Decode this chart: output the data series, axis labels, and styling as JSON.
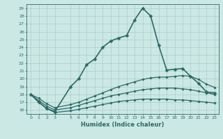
{
  "xlabel": "Humidex (Indice chaleur)",
  "background_color": "#cce8e4",
  "grid_color": "#aaccca",
  "line_color": "#2a6b65",
  "xlim": [
    -0.5,
    23.5
  ],
  "ylim": [
    15.5,
    29.5
  ],
  "xticks": [
    0,
    1,
    2,
    3,
    5,
    6,
    7,
    8,
    9,
    10,
    11,
    12,
    13,
    14,
    15,
    16,
    17,
    18,
    19,
    20,
    21,
    22,
    23
  ],
  "yticks": [
    16,
    17,
    18,
    19,
    20,
    21,
    22,
    23,
    24,
    25,
    26,
    27,
    28,
    29
  ],
  "series": [
    {
      "x": [
        0,
        1,
        2,
        3,
        5,
        6,
        7,
        8,
        9,
        10,
        11,
        12,
        13,
        14,
        15,
        16,
        17,
        18,
        19,
        20,
        21,
        22,
        23
      ],
      "y": [
        18,
        17,
        16.2,
        15.8,
        19.0,
        20.0,
        21.8,
        22.5,
        24.0,
        24.8,
        25.2,
        25.5,
        27.5,
        29.0,
        28.0,
        24.3,
        21.1,
        21.2,
        21.3,
        20.3,
        19.4,
        18.3,
        18.2
      ],
      "marker": "D",
      "markersize": 2.5,
      "linewidth": 1.2
    },
    {
      "x": [
        0,
        1,
        2,
        3,
        5,
        6,
        7,
        8,
        9,
        10,
        11,
        12,
        13,
        14,
        15,
        16,
        17,
        18,
        19,
        20,
        21,
        22,
        23
      ],
      "y": [
        18,
        17.5,
        16.8,
        16.3,
        16.7,
        17.0,
        17.4,
        17.8,
        18.2,
        18.6,
        19.0,
        19.3,
        19.6,
        19.9,
        20.1,
        20.2,
        20.2,
        20.3,
        20.4,
        20.3,
        19.9,
        19.3,
        18.9
      ],
      "marker": "D",
      "markersize": 1.8,
      "linewidth": 0.9
    },
    {
      "x": [
        0,
        1,
        2,
        3,
        5,
        6,
        7,
        8,
        9,
        10,
        11,
        12,
        13,
        14,
        15,
        16,
        17,
        18,
        19,
        20,
        21,
        22,
        23
      ],
      "y": [
        18,
        17.2,
        16.5,
        16.0,
        16.3,
        16.6,
        16.9,
        17.2,
        17.5,
        17.8,
        18.0,
        18.2,
        18.4,
        18.6,
        18.7,
        18.8,
        18.8,
        18.8,
        18.7,
        18.6,
        18.4,
        18.2,
        18.0
      ],
      "marker": "D",
      "markersize": 1.8,
      "linewidth": 0.9
    },
    {
      "x": [
        0,
        1,
        2,
        3,
        5,
        6,
        7,
        8,
        9,
        10,
        11,
        12,
        13,
        14,
        15,
        16,
        17,
        18,
        19,
        20,
        21,
        22,
        23
      ],
      "y": [
        18,
        17.0,
        16.2,
        15.7,
        15.9,
        16.1,
        16.3,
        16.5,
        16.7,
        16.9,
        17.1,
        17.2,
        17.3,
        17.4,
        17.4,
        17.4,
        17.4,
        17.3,
        17.3,
        17.2,
        17.1,
        17.0,
        16.9
      ],
      "marker": "D",
      "markersize": 1.8,
      "linewidth": 0.9
    }
  ]
}
